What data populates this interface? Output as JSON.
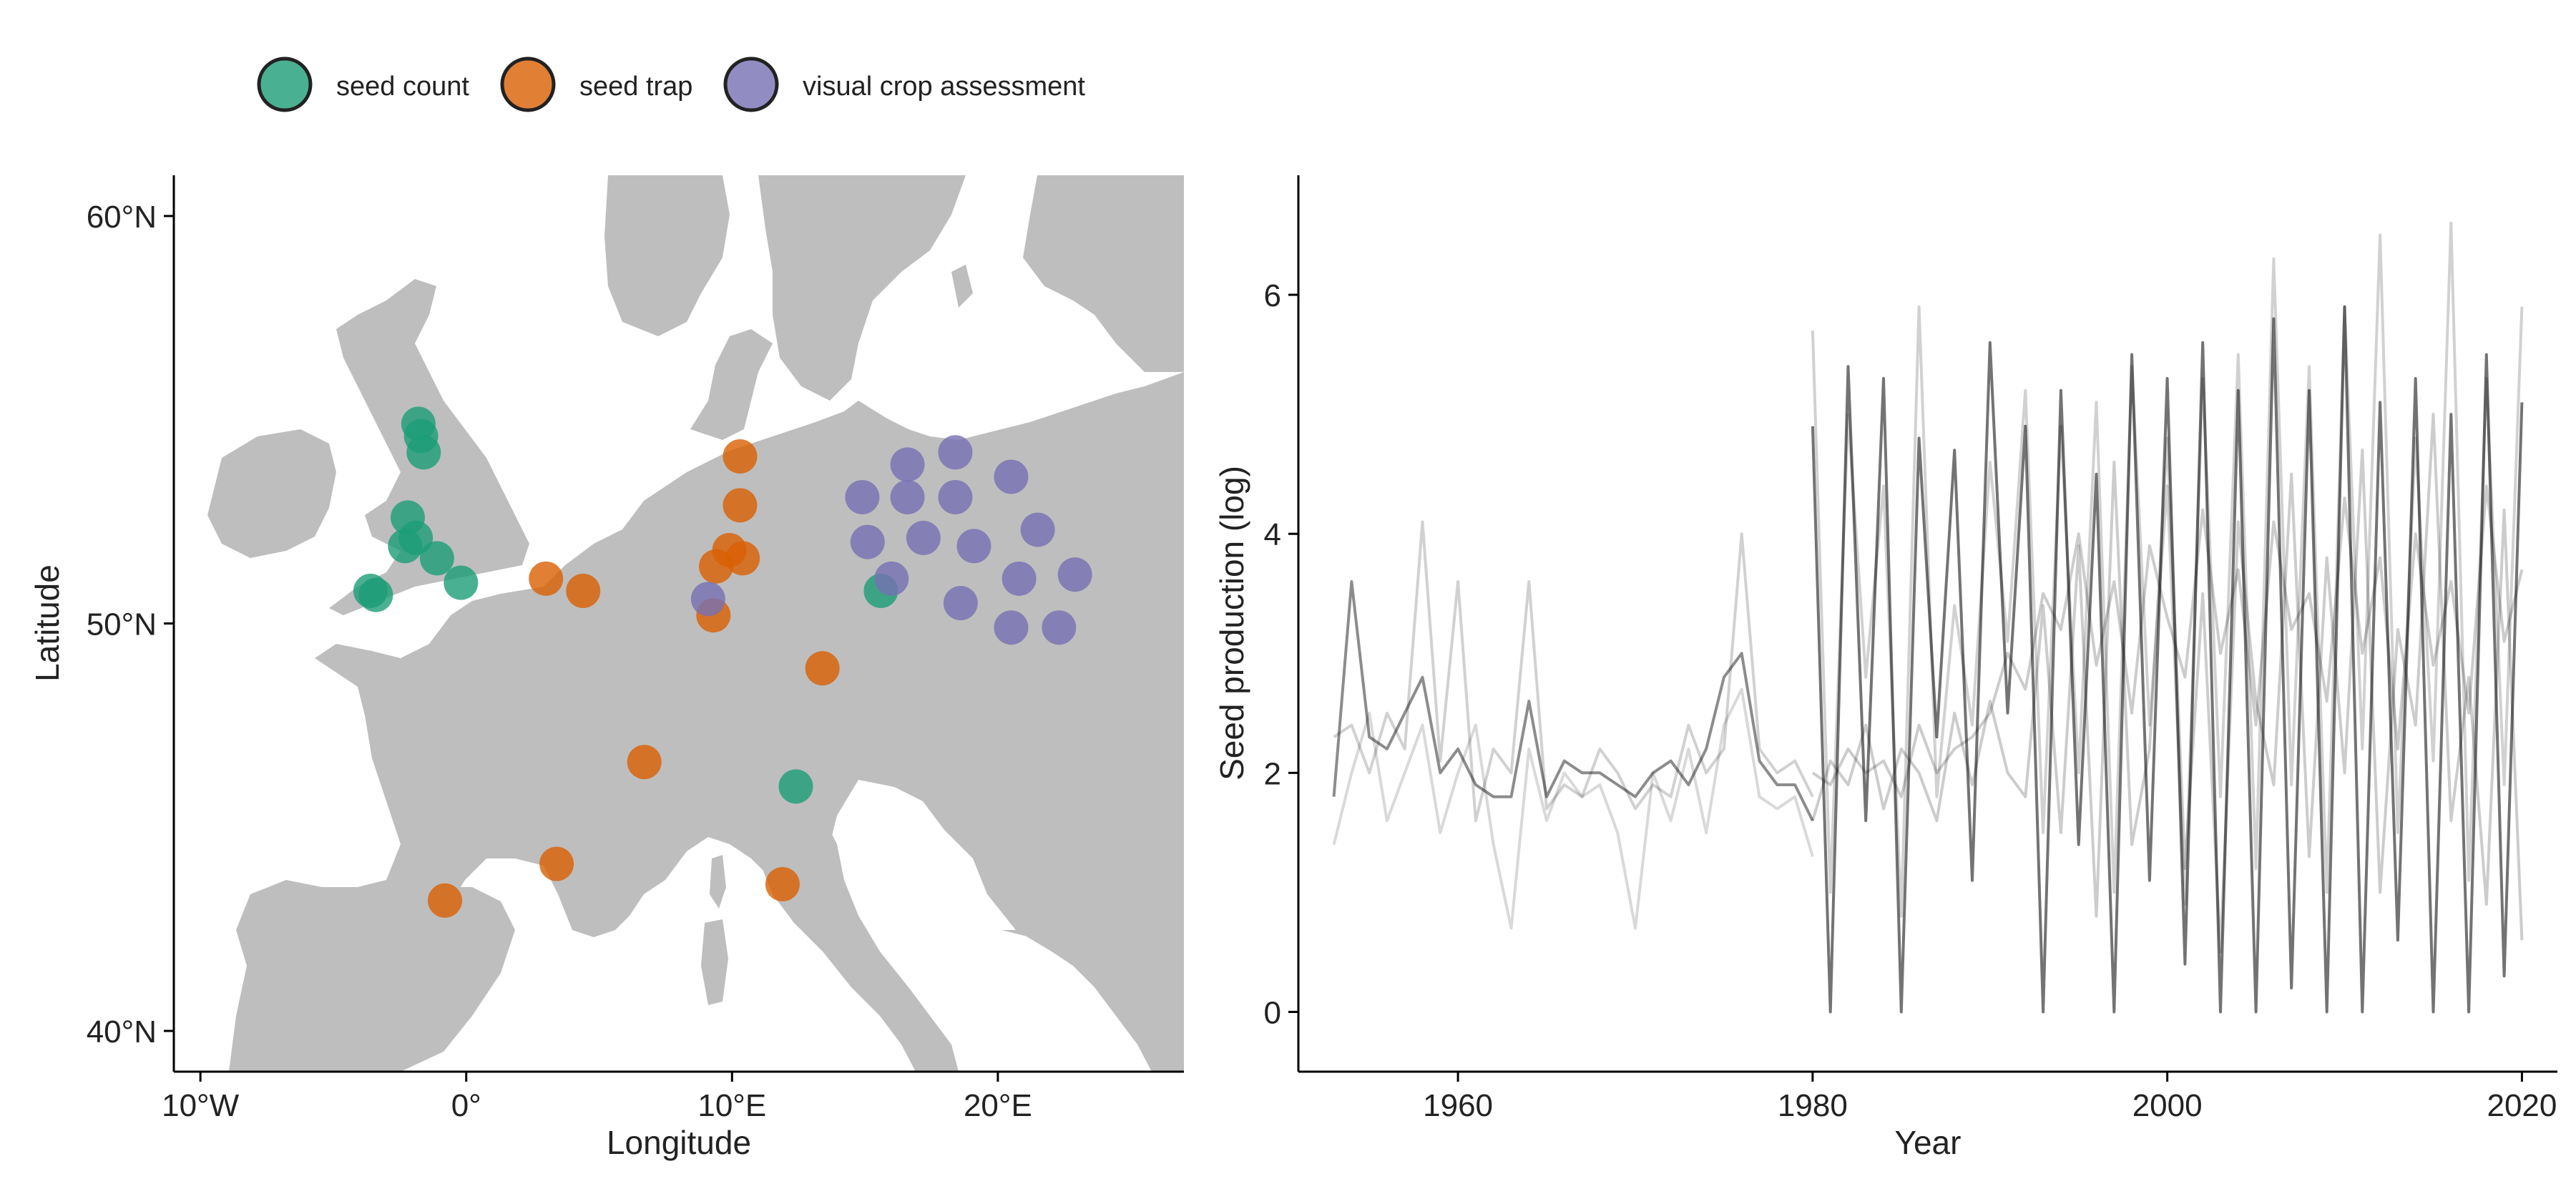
{
  "colors": {
    "seed_count": "#1b9e77",
    "seed_trap": "#d95f02",
    "visual_crop_assessment": "#7570b3",
    "land": "#bebebe",
    "sea": "#ffffff",
    "line_color": "#000000"
  },
  "legend": {
    "items": [
      {
        "label": "seed count",
        "color": "#1b9e77"
      },
      {
        "label": "seed trap",
        "color": "#d95f02"
      },
      {
        "label": "visual crop assessment",
        "color": "#7570b3"
      }
    ],
    "position": "top-left"
  },
  "chart_data": [
    {
      "type": "scatter",
      "title": "",
      "xlabel": "Longitude",
      "ylabel": "Latitude",
      "xlim": [
        -11,
        27
      ],
      "ylim": [
        39,
        61
      ],
      "xticks": [
        {
          "value": -10,
          "label": "10°W"
        },
        {
          "value": 0,
          "label": "0°"
        },
        {
          "value": 10,
          "label": "10°E"
        },
        {
          "value": 20,
          "label": "20°E"
        }
      ],
      "yticks": [
        {
          "value": 40,
          "label": "40°N"
        },
        {
          "value": 50,
          "label": "50°N"
        },
        {
          "value": 60,
          "label": "60°N"
        }
      ],
      "basemap": "Western/Central Europe land shapes (grey)",
      "series": [
        {
          "name": "seed count",
          "points": [
            [
              -1.8,
              54.9
            ],
            [
              -1.7,
              54.6
            ],
            [
              -1.6,
              54.2
            ],
            [
              -2.2,
              52.6
            ],
            [
              -1.9,
              52.1
            ],
            [
              -2.3,
              51.9
            ],
            [
              -1.1,
              51.6
            ],
            [
              -0.2,
              51.0
            ],
            [
              -3.6,
              50.8
            ],
            [
              -3.4,
              50.7
            ],
            [
              15.6,
              50.8
            ],
            [
              12.4,
              46.0
            ]
          ]
        },
        {
          "name": "seed trap",
          "points": [
            [
              10.3,
              54.1
            ],
            [
              10.3,
              52.9
            ],
            [
              3.0,
              51.1
            ],
            [
              4.4,
              50.8
            ],
            [
              9.9,
              51.8
            ],
            [
              10.4,
              51.6
            ],
            [
              9.4,
              51.4
            ],
            [
              9.3,
              50.2
            ],
            [
              13.4,
              48.9
            ],
            [
              6.7,
              46.6
            ],
            [
              3.4,
              44.1
            ],
            [
              -0.8,
              43.2
            ],
            [
              11.9,
              43.6
            ]
          ]
        },
        {
          "name": "visual crop assessment",
          "points": [
            [
              16.6,
              53.9
            ],
            [
              18.4,
              54.2
            ],
            [
              14.9,
              53.1
            ],
            [
              16.6,
              53.1
            ],
            [
              18.4,
              53.1
            ],
            [
              20.5,
              53.6
            ],
            [
              15.1,
              52.0
            ],
            [
              17.2,
              52.1
            ],
            [
              19.1,
              51.9
            ],
            [
              21.5,
              52.3
            ],
            [
              16.0,
              51.1
            ],
            [
              20.8,
              51.1
            ],
            [
              22.9,
              51.2
            ],
            [
              18.6,
              50.5
            ],
            [
              20.5,
              49.9
            ],
            [
              22.3,
              49.9
            ],
            [
              9.1,
              50.6
            ]
          ]
        }
      ]
    },
    {
      "type": "line",
      "title": "",
      "xlabel": "Year",
      "ylabel": "Seed production (log)",
      "xlim": [
        1951,
        2022
      ],
      "ylim": [
        -0.5,
        7
      ],
      "xticks": [
        1960,
        1980,
        2000,
        2020
      ],
      "yticks": [
        0,
        2,
        4,
        6
      ],
      "description_of_series": "many overlapping semi-transparent grey time series",
      "series": [
        {
          "name": "",
          "x": [
            1953,
            1954,
            1955,
            1956,
            1957,
            1958,
            1959,
            1960,
            1961,
            1962,
            1963,
            1964,
            1965,
            1966,
            1967,
            1968,
            1969,
            1970,
            1971,
            1972,
            1973,
            1974,
            1975,
            1976,
            1977,
            1978,
            1979,
            1980
          ],
          "y": [
            1.8,
            3.6,
            2.3,
            2.2,
            2.5,
            2.8,
            2.0,
            2.2,
            1.9,
            1.8,
            1.8,
            2.6,
            1.8,
            2.1,
            2.0,
            2.0,
            1.9,
            1.8,
            2.0,
            2.1,
            1.9,
            2.2,
            2.8,
            3.0,
            2.1,
            1.9,
            1.9,
            1.6
          ]
        },
        {
          "name": "",
          "x": [
            1953,
            1954,
            1955,
            1956,
            1957,
            1958,
            1959,
            1960,
            1961,
            1962,
            1963,
            1964,
            1965,
            1966,
            1967,
            1968,
            1969,
            1970,
            1971,
            1972,
            1973,
            1974,
            1975,
            1976,
            1977,
            1978,
            1979,
            1980
          ],
          "y": [
            2.3,
            2.4,
            2.0,
            2.5,
            2.2,
            4.1,
            2.1,
            3.6,
            1.6,
            2.2,
            2.0,
            3.6,
            1.7,
            1.9,
            1.8,
            2.2,
            2.0,
            1.7,
            1.9,
            1.8,
            2.4,
            2.0,
            2.2,
            4.0,
            2.2,
            2.0,
            2.1,
            1.8
          ]
        },
        {
          "name": "",
          "x": [
            1953,
            1954,
            1955,
            1956,
            1957,
            1958,
            1959,
            1960,
            1961,
            1962,
            1963,
            1964,
            1965,
            1966,
            1967,
            1968,
            1969,
            1970,
            1971,
            1972,
            1973,
            1974,
            1975,
            1976,
            1977,
            1978,
            1979,
            1980
          ],
          "y": [
            1.4,
            2.0,
            2.5,
            1.6,
            2.0,
            2.4,
            1.5,
            2.0,
            2.4,
            1.4,
            0.7,
            2.2,
            1.6,
            2.0,
            1.8,
            1.9,
            1.5,
            0.7,
            2.0,
            1.6,
            2.2,
            1.5,
            2.4,
            2.7,
            1.8,
            1.7,
            1.8,
            1.3
          ]
        },
        {
          "name": "",
          "x": [
            1980,
            1981,
            1982,
            1983,
            1984,
            1985,
            1986,
            1987,
            1988,
            1989,
            1990,
            1991,
            1992,
            1993,
            1994,
            1995,
            1996,
            1997,
            1998,
            1999,
            2000,
            2001,
            2002,
            2003,
            2004,
            2005,
            2006,
            2007,
            2008,
            2009,
            2010,
            2011,
            2012,
            2013,
            2014,
            2015,
            2016,
            2017,
            2018,
            2019,
            2020
          ],
          "y": [
            4.9,
            0.0,
            5.4,
            1.6,
            5.3,
            0.0,
            4.8,
            2.3,
            4.7,
            1.1,
            5.6,
            2.5,
            4.9,
            0.0,
            5.2,
            1.4,
            4.5,
            0.0,
            5.5,
            1.1,
            5.3,
            0.4,
            5.6,
            0.0,
            5.2,
            0.0,
            5.8,
            0.2,
            5.2,
            0.0,
            5.9,
            0.0,
            5.1,
            0.6,
            5.3,
            0.0,
            5.0,
            0.0,
            5.5,
            0.3,
            5.1
          ]
        },
        {
          "name": "",
          "x": [
            1980,
            1981,
            1982,
            1983,
            1984,
            1985,
            1986,
            1987,
            1988,
            1989,
            1990,
            1991,
            1992,
            1993,
            1994,
            1995,
            1996,
            1997,
            1998,
            1999,
            2000,
            2001,
            2002,
            2003,
            2004,
            2005,
            2006,
            2007,
            2008,
            2009,
            2010,
            2011,
            2012,
            2013,
            2014,
            2015,
            2016,
            2017,
            2018,
            2019,
            2020
          ],
          "y": [
            5.7,
            1.0,
            5.0,
            2.8,
            4.4,
            0.8,
            5.9,
            1.8,
            3.4,
            2.4,
            4.6,
            3.1,
            5.2,
            1.5,
            4.9,
            2.0,
            5.1,
            1.0,
            5.4,
            2.4,
            4.4,
            0.9,
            5.3,
            1.8,
            5.5,
            1.2,
            6.3,
            1.9,
            5.4,
            1.0,
            5.9,
            2.2,
            6.5,
            1.5,
            4.8,
            2.1,
            6.6,
            1.1,
            5.3,
            1.9,
            5.9
          ]
        },
        {
          "name": "",
          "x": [
            1980,
            1981,
            1982,
            1983,
            1984,
            1985,
            1986,
            1987,
            1988,
            1989,
            1990,
            1991,
            1992,
            1993,
            1994,
            1995,
            1996,
            1997,
            1998,
            1999,
            2000,
            2001,
            2002,
            2003,
            2004,
            2005,
            2006,
            2007,
            2008,
            2009,
            2010,
            2011,
            2012,
            2013,
            2014,
            2015,
            2016,
            2017,
            2018,
            2019,
            2020
          ],
          "y": [
            2.0,
            1.9,
            2.2,
            2.0,
            2.1,
            1.8,
            2.4,
            2.0,
            2.2,
            2.3,
            2.5,
            3.0,
            2.7,
            3.5,
            3.2,
            4.0,
            2.9,
            3.6,
            2.5,
            3.9,
            3.3,
            2.8,
            4.2,
            3.0,
            3.7,
            2.4,
            4.1,
            3.2,
            3.5,
            2.6,
            4.3,
            3.0,
            3.8,
            2.2,
            4.0,
            2.9,
            3.6,
            2.5,
            4.4,
            3.1,
            3.7
          ]
        },
        {
          "name": "",
          "x": [
            1980,
            1981,
            1982,
            1983,
            1984,
            1985,
            1986,
            1987,
            1988,
            1989,
            1990,
            1991,
            1992,
            1993,
            1994,
            1995,
            1996,
            1997,
            1998,
            1999,
            2000,
            2001,
            2002,
            2003,
            2004,
            2005,
            2006,
            2007,
            2008,
            2009,
            2010,
            2011,
            2012,
            2013,
            2014,
            2015,
            2016,
            2017,
            2018,
            2019,
            2020
          ],
          "y": [
            1.6,
            2.1,
            1.9,
            2.4,
            1.7,
            2.2,
            2.0,
            1.6,
            2.5,
            1.9,
            2.6,
            2.0,
            1.8,
            3.4,
            1.5,
            3.9,
            0.8,
            4.6,
            1.4,
            2.2,
            4.8,
            1.2,
            3.5,
            0.5,
            4.1,
            2.6,
            1.9,
            4.5,
            1.3,
            3.8,
            2.0,
            4.7,
            1.0,
            3.2,
            2.4,
            5.0,
            1.6,
            2.8,
            0.9,
            4.2,
            0.6
          ]
        }
      ]
    }
  ]
}
